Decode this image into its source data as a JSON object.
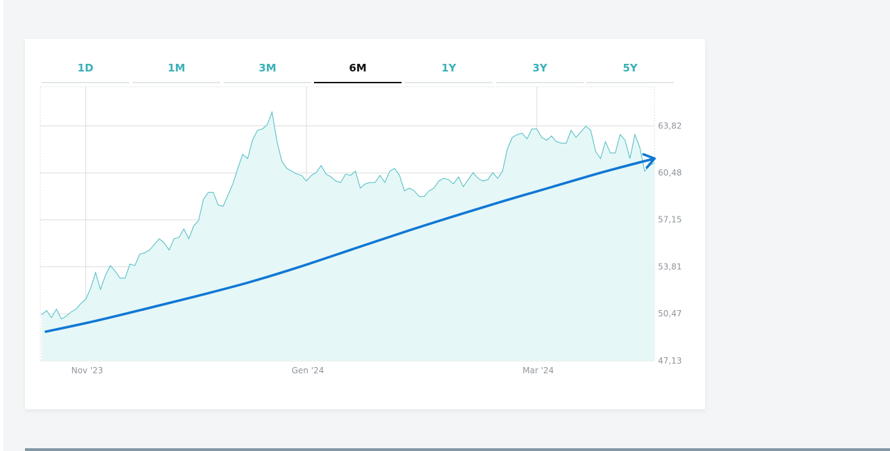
{
  "tabs": [
    {
      "label": "1D",
      "active": false
    },
    {
      "label": "1M",
      "active": false
    },
    {
      "label": "3M",
      "active": false
    },
    {
      "label": "6M",
      "active": true
    },
    {
      "label": "1Y",
      "active": false
    },
    {
      "label": "3Y",
      "active": false
    },
    {
      "label": "5Y",
      "active": false
    }
  ],
  "colors": {
    "accent": "#3ab0b8",
    "price_line": "#4bbcc2",
    "area_fill": "#e5f7f7",
    "trend": "#0f77d4",
    "grid": "#d9dcdf",
    "active_tab": "#111111"
  },
  "chart_data": {
    "type": "area",
    "title": "",
    "xlabel": "",
    "ylabel": "",
    "ylim": [
      47.13,
      66.6
    ],
    "yticks": [
      {
        "value": 47.13,
        "label": "47,13"
      },
      {
        "value": 50.47,
        "label": "50,47"
      },
      {
        "value": 53.81,
        "label": "53,81"
      },
      {
        "value": 57.15,
        "label": "57,15"
      },
      {
        "value": 60.48,
        "label": "60,48"
      },
      {
        "value": 63.82,
        "label": "63,82"
      }
    ],
    "xticks": [
      {
        "index": 9,
        "label": "Nov '23"
      },
      {
        "index": 54,
        "label": "Gen '24"
      },
      {
        "index": 101,
        "label": "Mar '24"
      }
    ],
    "grid": true,
    "legend": "none",
    "series": [
      {
        "values": [
          50.4,
          50.7,
          50.2,
          50.8,
          50.1,
          50.3,
          50.6,
          50.8,
          51.2,
          51.5,
          52.3,
          53.4,
          52.2,
          53.2,
          53.9,
          53.5,
          53.0,
          53.0,
          54.0,
          53.9,
          54.7,
          54.8,
          55.0,
          55.4,
          55.8,
          55.5,
          55.0,
          55.8,
          55.9,
          56.5,
          55.8,
          56.7,
          57.1,
          58.6,
          59.1,
          59.1,
          58.2,
          58.1,
          58.9,
          59.7,
          60.8,
          61.8,
          61.5,
          62.8,
          63.5,
          63.6,
          63.9,
          64.8,
          62.7,
          61.3,
          60.8,
          60.6,
          60.4,
          60.3,
          59.9,
          60.3,
          60.5,
          61.0,
          60.4,
          60.2,
          59.9,
          59.8,
          60.4,
          60.3,
          60.6,
          59.4,
          59.7,
          59.8,
          59.8,
          60.3,
          59.8,
          60.6,
          60.8,
          60.3,
          59.2,
          59.4,
          59.2,
          58.8,
          58.8,
          59.2,
          59.4,
          59.9,
          60.1,
          60.0,
          59.7,
          60.2,
          59.5,
          60.0,
          60.5,
          60.1,
          59.9,
          60.0,
          60.5,
          60.1,
          60.6,
          62.2,
          63.0,
          63.2,
          63.3,
          62.9,
          63.6,
          63.6,
          63.0,
          62.8,
          63.1,
          62.7,
          62.6,
          62.6,
          63.5,
          63.0,
          63.4,
          63.8,
          63.5,
          62.0,
          61.5,
          62.7,
          61.9,
          61.9,
          63.2,
          62.8,
          61.5,
          63.2,
          62.3,
          60.6,
          61.0,
          61.2
        ]
      }
    ],
    "trend": {
      "values": [
        49.2,
        49.98,
        50.85,
        51.75,
        52.7,
        53.8,
        55.0,
        56.2,
        57.35,
        58.45,
        59.5,
        60.55,
        61.5
      ]
    }
  }
}
